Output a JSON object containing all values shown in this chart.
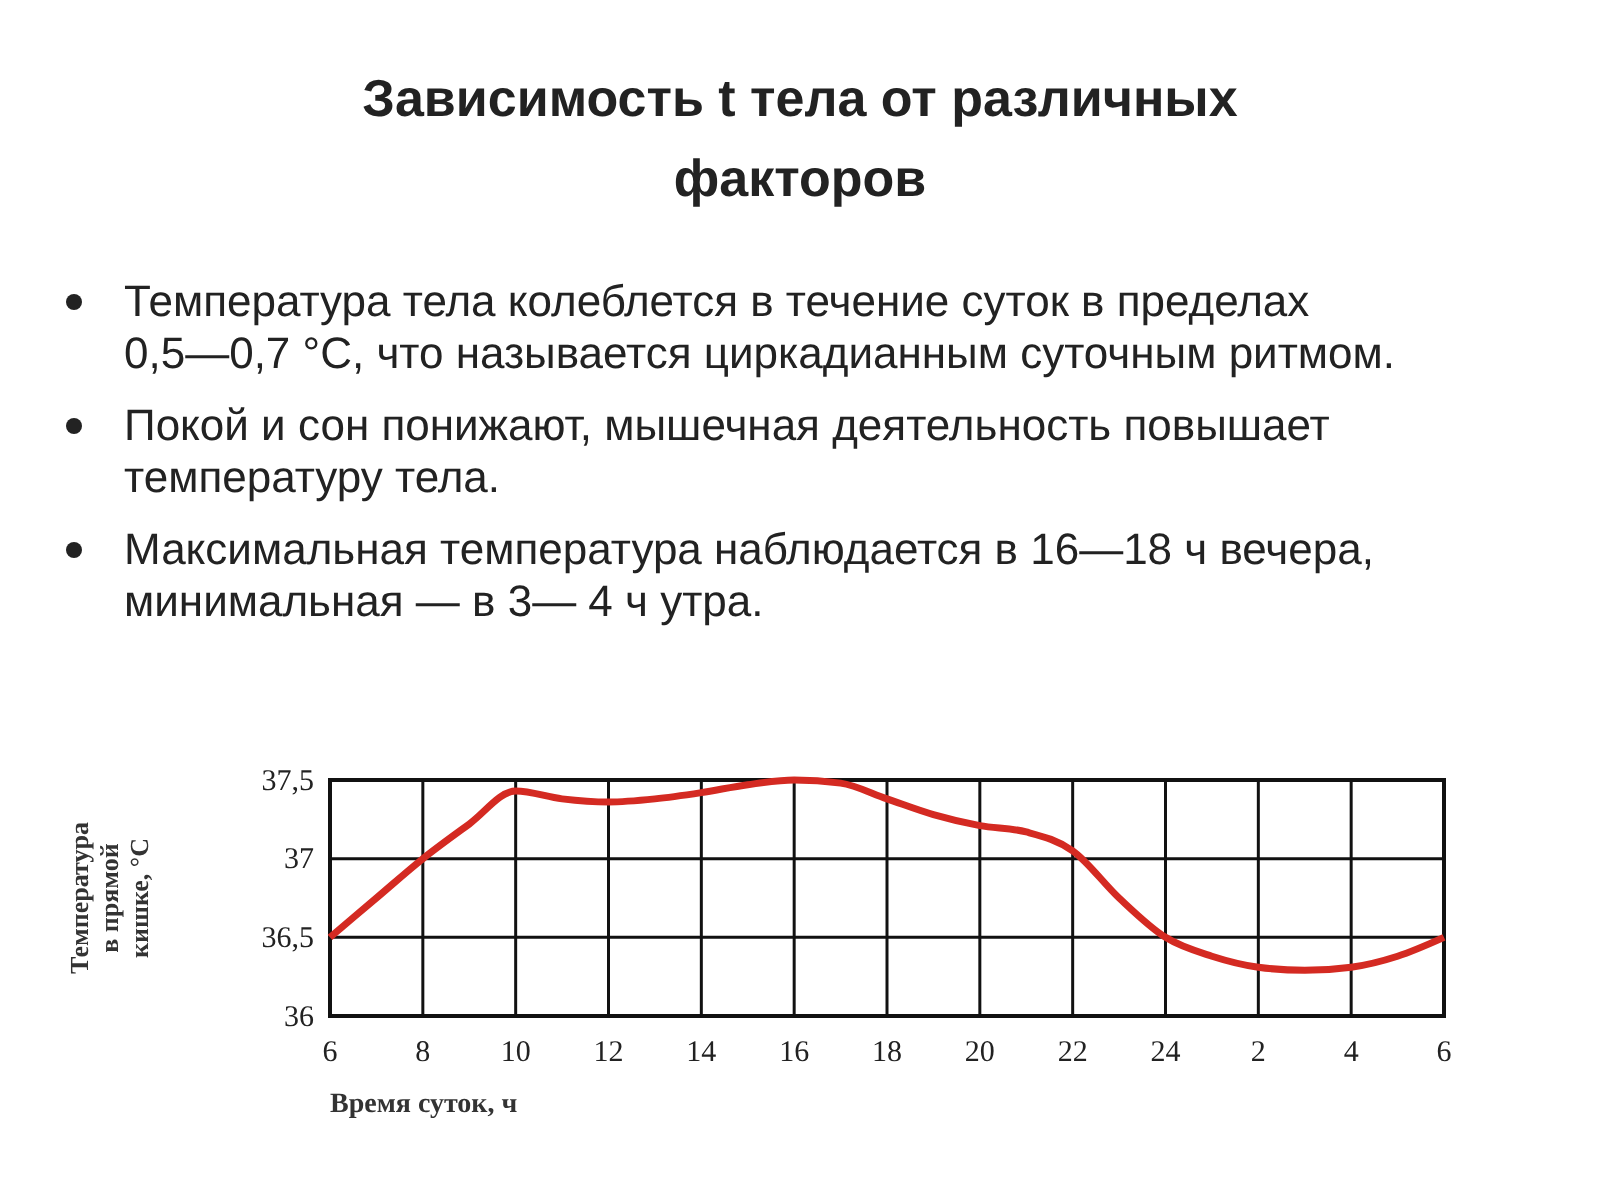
{
  "chart_data": {
    "type": "line",
    "title": "Зависимость t тела от различных факторов",
    "annotations": [
      "Температура тела колеблется в течение суток в пределах 0,5—0,7 °С, что называется циркадианным суточным ритмом.",
      "Покой и сон понижают, мышечная деятельность повышает температуру тела.",
      "Максимальная температура наблюдается в 16—18 ч вечера, минимальная — в 3— 4 ч утра."
    ],
    "xlabel": "Время суток, ч",
    "ylabel": "Температура в прямой кишке, °C",
    "categories": [
      "6",
      null,
      "8",
      null,
      "10",
      null,
      "12",
      null,
      "14",
      null,
      "16",
      null,
      "18",
      null,
      "20",
      null,
      "22",
      null,
      "24",
      null,
      "2",
      null,
      "4",
      null,
      "6"
    ],
    "series": [
      {
        "color": "#d42a22",
        "values": [
          36.5,
          36.75,
          37.0,
          37.22,
          37.43,
          37.38,
          37.36,
          37.38,
          37.42,
          37.47,
          37.5,
          37.48,
          37.38,
          37.28,
          37.21,
          37.17,
          37.05,
          36.75,
          36.5,
          36.38,
          36.31,
          36.29,
          36.31,
          36.38,
          36.5
        ]
      }
    ],
    "ylim": [
      36,
      37.5
    ],
    "yticks": [
      36,
      {
        "value": 36.5,
        "label": "36,5"
      },
      37,
      {
        "value": 37.5,
        "label": "37,5"
      }
    ],
    "grid": true,
    "marker": "none",
    "line_style": "solid"
  }
}
